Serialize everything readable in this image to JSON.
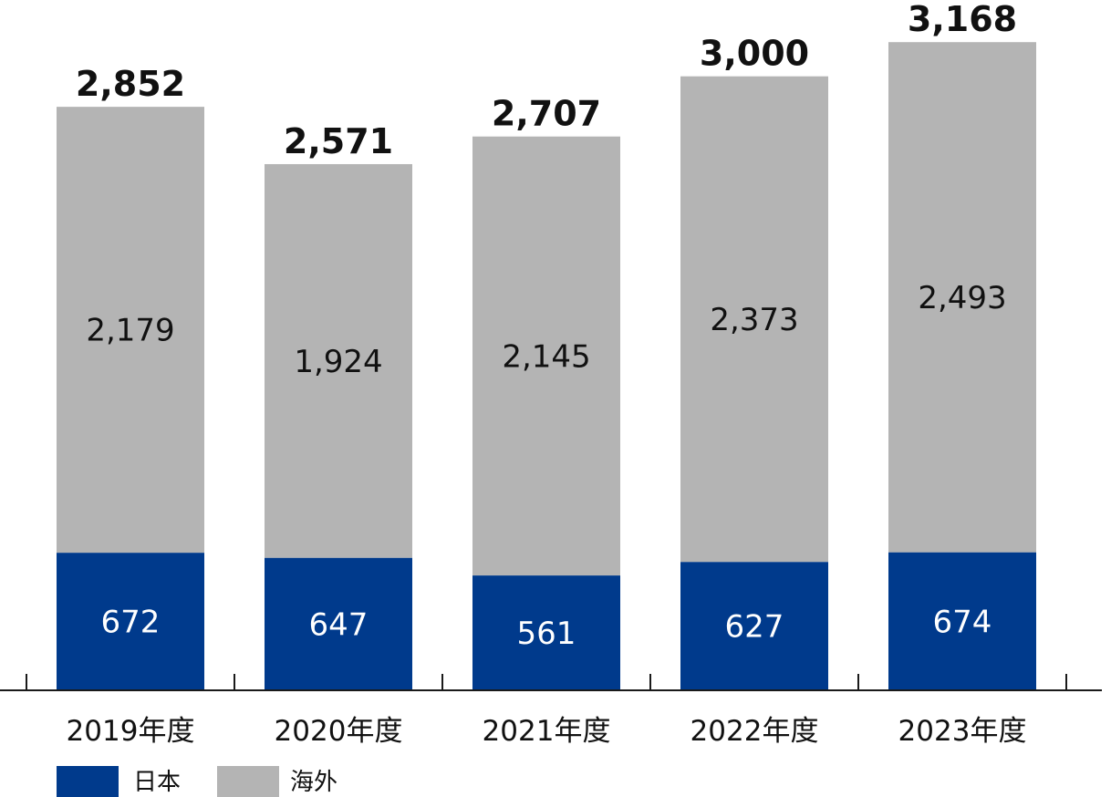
{
  "chart_data": {
    "type": "bar",
    "stacked": true,
    "categories": [
      "2019年度",
      "2020年度",
      "2021年度",
      "2022年度",
      "2023年度"
    ],
    "series": [
      {
        "name": "日本",
        "values": [
          672,
          647,
          561,
          627,
          674
        ],
        "color": "#003A8C",
        "value_labels": [
          "672",
          "647",
          "561",
          "627",
          "674"
        ]
      },
      {
        "name": "海外",
        "values": [
          2179,
          1924,
          2145,
          2373,
          2493
        ],
        "color": "#B4B4B4",
        "value_labels": [
          "2,179",
          "1,924",
          "2,145",
          "2,373",
          "2,493"
        ]
      }
    ],
    "totals": [
      2852,
      2571,
      2707,
      3000,
      3168
    ],
    "total_labels": [
      "2,852",
      "2,571",
      "2,707",
      "3,000",
      "3,168"
    ],
    "ylim": [
      0,
      3200
    ],
    "grid": false,
    "legend_position": "bottom-left"
  }
}
